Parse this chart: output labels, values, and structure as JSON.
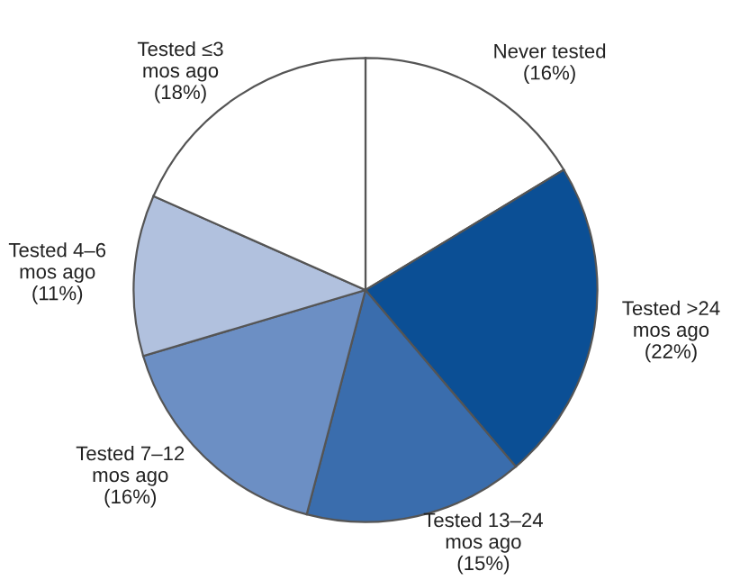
{
  "chart_data": {
    "type": "pie",
    "categories": [
      "Never tested\n(16%)",
      "Tested >24\nmos ago\n(22%)",
      "Tested 13–24\nmos ago\n(15%)",
      "Tested 7–12\nmos ago\n(16%)",
      "Tested 4–6\nmos ago\n(11%)",
      "Tested ≤3\nmos ago\n(18%)"
    ],
    "values": [
      16,
      22,
      15,
      16,
      11,
      18
    ],
    "colors": [
      "#ffffff",
      "#0b4f95",
      "#3a6dad",
      "#6c8fc4",
      "#b1c1de",
      "#ffffff"
    ]
  }
}
